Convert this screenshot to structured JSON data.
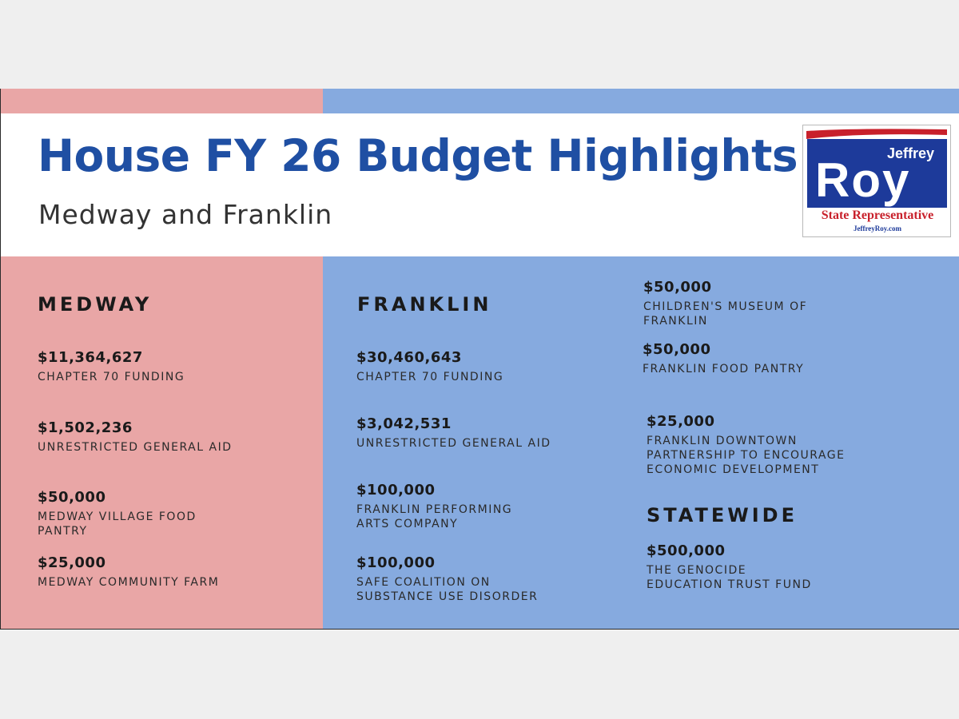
{
  "header": {
    "title": "House FY 26 Budget Highlights",
    "subtitle": "Medway and Franklin"
  },
  "logo": {
    "first_name": "Jeffrey",
    "last_name": "Roy",
    "role": "State Representative",
    "website": "JeffreyRoy.com",
    "colors": {
      "blue": "#1d3a9a",
      "red": "#c8202b"
    }
  },
  "colors": {
    "title_blue": "#1f4fa3",
    "pink_panel": "#e9a6a6",
    "blue_panel": "#86aadf"
  },
  "medway": {
    "heading": "MEDWAY",
    "items": [
      {
        "amount": "$11,364,627",
        "desc": "CHAPTER 70 FUNDING"
      },
      {
        "amount": "$1,502,236",
        "desc": "UNRESTRICTED GENERAL AID"
      },
      {
        "amount": "$50,000",
        "desc_lines": [
          "MEDWAY VILLAGE FOOD",
          "PANTRY"
        ]
      },
      {
        "amount": "$25,000",
        "desc": "MEDWAY COMMUNITY FARM"
      }
    ]
  },
  "franklin": {
    "heading": "FRANKLIN",
    "items": [
      {
        "amount": "$30,460,643",
        "desc": "CHAPTER 70 FUNDING"
      },
      {
        "amount": "$3,042,531",
        "desc": "UNRESTRICTED GENERAL AID"
      },
      {
        "amount": "$100,000",
        "desc_lines": [
          "FRANKLIN PERFORMING",
          "ARTS COMPANY"
        ]
      },
      {
        "amount": "$100,000",
        "desc_lines": [
          "SAFE COALITION ON",
          "SUBSTANCE USE DISORDER"
        ]
      },
      {
        "amount": "$50,000",
        "desc_lines": [
          "CHILDREN'S MUSEUM OF",
          "FRANKLIN"
        ]
      },
      {
        "amount": "$50,000",
        "desc": "FRANKLIN FOOD PANTRY"
      },
      {
        "amount": "$25,000",
        "desc_lines": [
          "FRANKLIN DOWNTOWN",
          "PARTNERSHIP TO ENCOURAGE",
          "ECONOMIC DEVELOPMENT"
        ]
      }
    ]
  },
  "statewide": {
    "heading": "STATEWIDE",
    "items": [
      {
        "amount": "$500,000",
        "desc_lines": [
          "THE GENOCIDE",
          "EDUCATION TRUST FUND"
        ]
      }
    ]
  }
}
